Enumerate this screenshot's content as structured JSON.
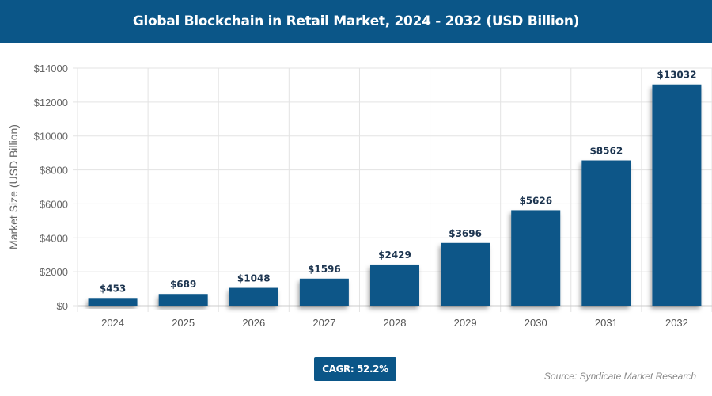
{
  "chart_data": {
    "type": "bar",
    "title": "Global Blockchain in Retail Market, 2024 - 2032 (USD Billion)",
    "xlabel": "",
    "ylabel": "Market Size (USD Billion)",
    "categories": [
      "2024",
      "2025",
      "2026",
      "2027",
      "2028",
      "2029",
      "2030",
      "2031",
      "2032"
    ],
    "values": [
      453,
      689,
      1048,
      1596,
      2429,
      3696,
      5626,
      8562,
      13032
    ],
    "data_labels": [
      "$453",
      "$689",
      "$1048",
      "$1596",
      "$2429",
      "$3696",
      "$5626",
      "$8562",
      "$13032"
    ],
    "ylim": [
      0,
      14000
    ],
    "yticks": [
      0,
      2000,
      4000,
      6000,
      8000,
      10000,
      12000,
      14000
    ],
    "ytick_labels": [
      "$0",
      "$2000",
      "$4000",
      "$6000",
      "$8000",
      "$10000",
      "$12000",
      "$14000"
    ],
    "grid": true,
    "bar_color": "#0b5688"
  },
  "cagr": "CAGR: 52.2%",
  "source": "Source: Syndicate Market Research"
}
